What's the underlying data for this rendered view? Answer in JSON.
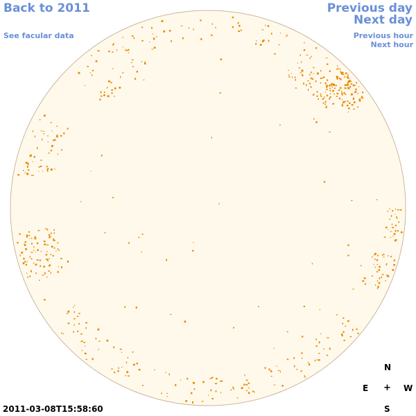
{
  "nav": {
    "back_label": "Back to 2011",
    "facular_label": "See facular data",
    "prev_day_label": "Previous day",
    "next_day_label": "Next day",
    "prev_hour_label": "Previous hour",
    "next_hour_label": "Next hour"
  },
  "timestamp": "2011-03-08T15:58:60",
  "compass": {
    "north": "N",
    "east": "E",
    "center": "+",
    "west": "W",
    "south": "S"
  },
  "colors": {
    "link": "#6a8fd8",
    "disk_fill": "#fff9ec",
    "disk_edge": "#c8b89a",
    "facula": "#e88a00"
  }
}
